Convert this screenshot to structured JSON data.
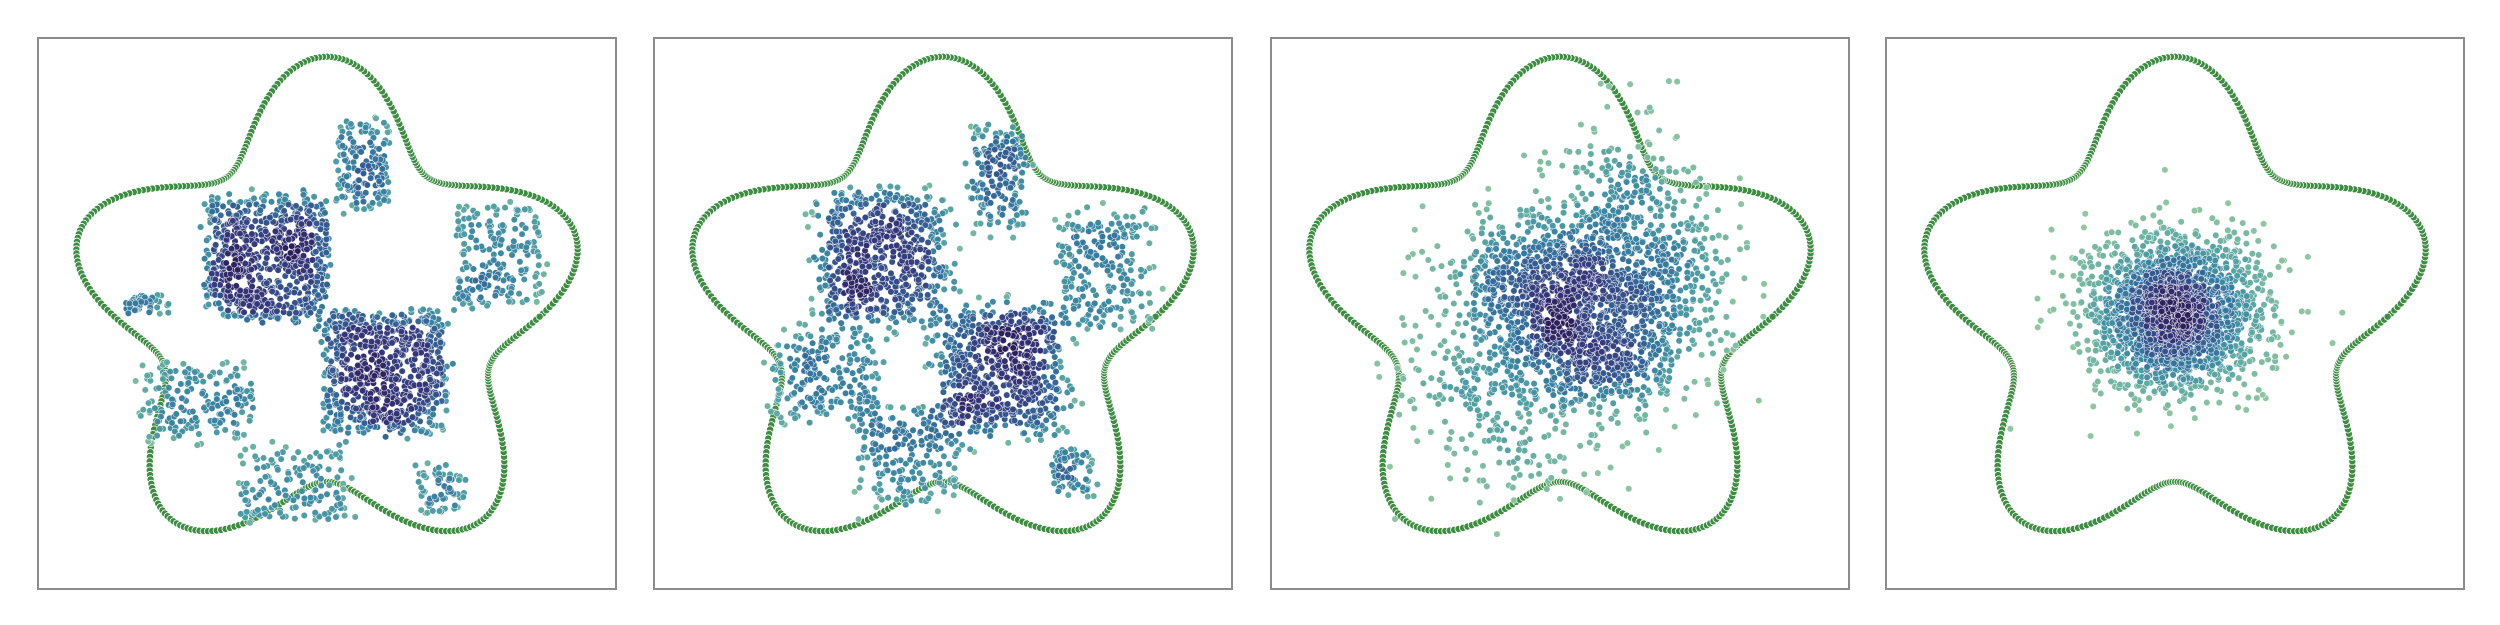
{
  "figure": {
    "background": "#ffffff",
    "frame_color": "#8c8c8c"
  },
  "chart_data": [
    {
      "type": "scatter",
      "title": "",
      "xlabel": "",
      "ylabel": "",
      "xlim": [
        -1.6,
        1.6
      ],
      "ylim": [
        -1.55,
        1.55
      ],
      "grid": false,
      "legend": "none",
      "boundary": {
        "shape": "five-pointed star",
        "lobes": 5,
        "r_mean": 1.2,
        "r_amp": 0.25,
        "color": "#3c8d40"
      },
      "series": [
        {
          "kind": "checkerboard",
          "spread": 0.2,
          "count": 2200,
          "cells": [
            {
              "cx": -0.33,
              "cy": 0.32,
              "w": 0.33,
              "h": 0.34,
              "weight": 0.32
            },
            {
              "cx": 0.32,
              "cy": -0.32,
              "w": 0.33,
              "h": 0.34,
              "weight": 0.32
            },
            {
              "cx": 0.2,
              "cy": 0.85,
              "w": 0.14,
              "h": 0.25,
              "weight": 0.07
            },
            {
              "cx": 0.95,
              "cy": 0.32,
              "w": 0.25,
              "h": 0.28,
              "weight": 0.09
            },
            {
              "cx": -0.72,
              "cy": -0.5,
              "w": 0.3,
              "h": 0.22,
              "weight": 0.08
            },
            {
              "cx": -0.18,
              "cy": -0.95,
              "w": 0.3,
              "h": 0.22,
              "weight": 0.07
            },
            {
              "cx": 0.62,
              "cy": -0.98,
              "w": 0.14,
              "h": 0.14,
              "weight": 0.03
            },
            {
              "cx": -1.0,
              "cy": 0.05,
              "w": 0.12,
              "h": 0.06,
              "weight": 0.02
            }
          ]
        }
      ]
    },
    {
      "type": "scatter",
      "title": "",
      "xlabel": "",
      "ylabel": "",
      "xlim": [
        -1.6,
        1.6
      ],
      "ylim": [
        -1.55,
        1.55
      ],
      "grid": false,
      "legend": "none",
      "boundary": {
        "shape": "five-pointed star",
        "lobes": 5,
        "r_mean": 1.2,
        "r_amp": 0.25,
        "color": "#3c8d40"
      },
      "series": [
        {
          "kind": "checkerboard",
          "spread": 0.45,
          "count": 2200,
          "cells": [
            {
              "cx": -0.33,
              "cy": 0.32,
              "w": 0.33,
              "h": 0.34,
              "weight": 0.3
            },
            {
              "cx": 0.32,
              "cy": -0.32,
              "w": 0.33,
              "h": 0.34,
              "weight": 0.3
            },
            {
              "cx": 0.3,
              "cy": 0.75,
              "w": 0.14,
              "h": 0.28,
              "weight": 0.08
            },
            {
              "cx": 0.9,
              "cy": 0.25,
              "w": 0.25,
              "h": 0.3,
              "weight": 0.1
            },
            {
              "cx": -0.65,
              "cy": -0.35,
              "w": 0.28,
              "h": 0.25,
              "weight": 0.1
            },
            {
              "cx": -0.15,
              "cy": -0.8,
              "w": 0.28,
              "h": 0.25,
              "weight": 0.09
            },
            {
              "cx": 0.72,
              "cy": -0.9,
              "w": 0.12,
              "h": 0.12,
              "weight": 0.03
            }
          ]
        }
      ]
    },
    {
      "type": "scatter",
      "title": "",
      "xlabel": "",
      "ylabel": "",
      "xlim": [
        -1.6,
        1.6
      ],
      "ylim": [
        -1.55,
        1.55
      ],
      "grid": false,
      "legend": "none",
      "boundary": {
        "shape": "five-pointed star",
        "lobes": 5,
        "r_mean": 1.2,
        "r_amp": 0.25,
        "color": "#3c8d40"
      },
      "series": [
        {
          "kind": "diffusing",
          "spread": 0.2,
          "count": 2200,
          "blobs": [
            {
              "cx": -0.05,
              "cy": 0.2,
              "sx": 0.28,
              "sy": 0.2,
              "weight": 0.33
            },
            {
              "cx": 0.2,
              "cy": -0.18,
              "sx": 0.28,
              "sy": 0.22,
              "weight": 0.33
            },
            {
              "cx": 0.38,
              "cy": 0.6,
              "sx": 0.22,
              "sy": 0.25,
              "weight": 0.12
            },
            {
              "cx": -0.35,
              "cy": -0.45,
              "sx": 0.28,
              "sy": 0.3,
              "weight": 0.14
            },
            {
              "cx": 0.65,
              "cy": 0.2,
              "sx": 0.18,
              "sy": 0.22,
              "weight": 0.08
            }
          ]
        }
      ]
    },
    {
      "type": "scatter",
      "title": "",
      "xlabel": "",
      "ylabel": "",
      "xlim": [
        -1.6,
        1.6
      ],
      "ylim": [
        -1.55,
        1.55
      ],
      "grid": false,
      "legend": "none",
      "boundary": {
        "shape": "five-pointed star",
        "lobes": 5,
        "r_mean": 1.2,
        "r_amp": 0.25,
        "color": "#3c8d40"
      },
      "series": [
        {
          "kind": "gaussian",
          "count": 2200,
          "blobs": [
            {
              "cx": 0.0,
              "cy": 0.0,
              "sx": 0.24,
              "sy": 0.22,
              "weight": 1.0
            }
          ]
        }
      ]
    }
  ],
  "colormap": {
    "name": "crest",
    "stops": [
      "#94c9a0",
      "#6fb5a2",
      "#4f9ea4",
      "#3b87a3",
      "#336d9b",
      "#35528c",
      "#35367a",
      "#2c1e5b"
    ]
  }
}
